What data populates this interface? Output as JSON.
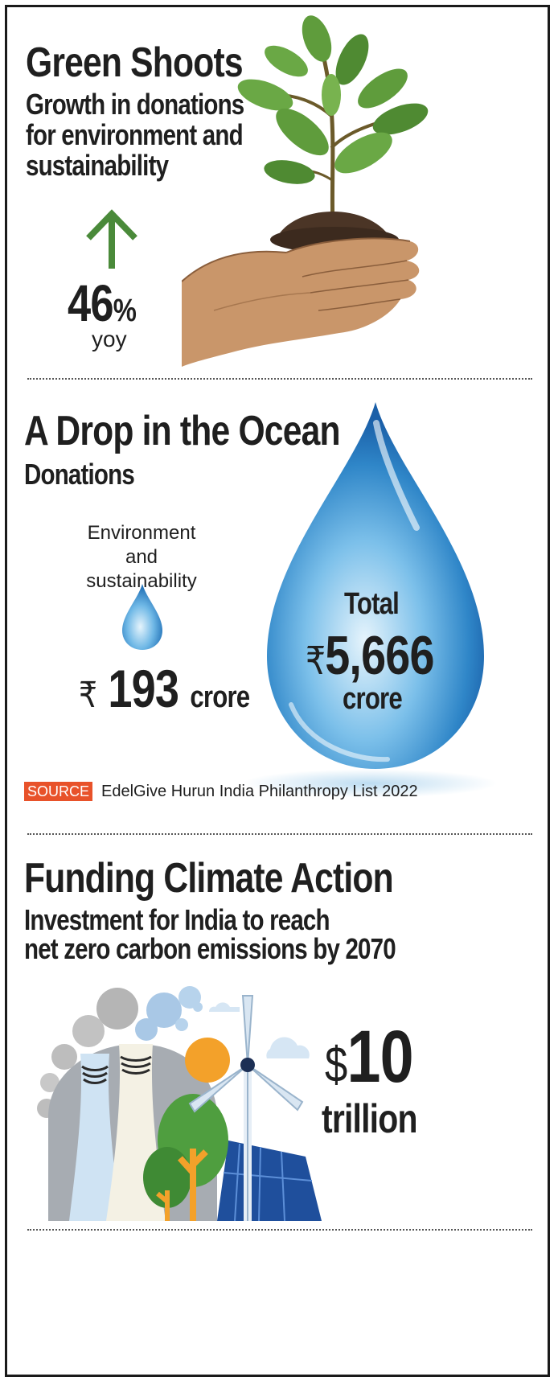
{
  "section1": {
    "title": "Green Shoots",
    "subtitle_lines": [
      "Growth in donations",
      "for environment and",
      "sustainability"
    ],
    "stat_number": "46",
    "stat_unit": "%",
    "stat_caption": "yoy"
  },
  "section2": {
    "title": "A Drop in the Ocean",
    "subtitle": "Donations",
    "env_label_lines": [
      "Environment and",
      "sustainability"
    ],
    "env_currency": "₹",
    "env_value": "193",
    "env_unit": "crore",
    "total_label": "Total",
    "total_currency": "₹",
    "total_value": "5,666",
    "total_unit": "crore",
    "source_tag": "SOURCE",
    "source_text": "EdelGive Hurun India Philanthropy List 2022"
  },
  "section3": {
    "title": "Funding Climate Action",
    "subtitle_lines": [
      "Investment for India to reach",
      "net zero carbon emissions by 2070"
    ],
    "currency": "$",
    "value": "10",
    "unit": "trillion"
  },
  "colors": {
    "arrow_green": "#4a8a3a",
    "source_orange": "#e8522a",
    "drop_blue": "#2f86c8",
    "sun_orange": "#f3a12a"
  },
  "icons": [
    "plant-in-hands-illustration",
    "up-arrow-icon",
    "water-drop-small-icon",
    "water-drop-large-icon",
    "climate-energy-illustration"
  ]
}
